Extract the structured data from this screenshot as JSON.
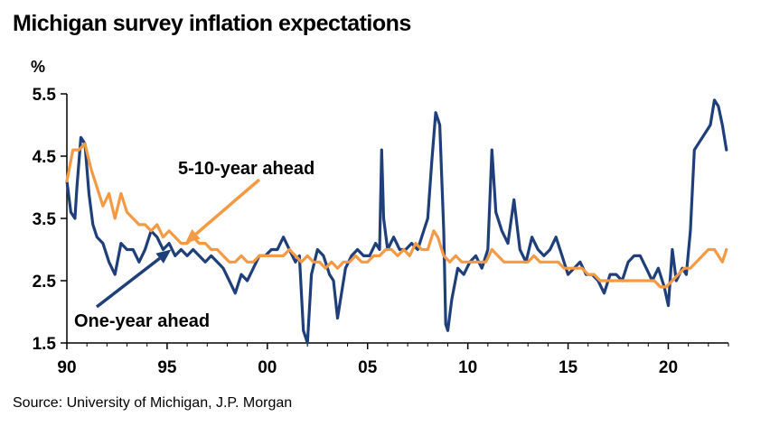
{
  "title": "Michigan survey inflation expectations",
  "source": "Source: University of Michigan, J.P. Morgan",
  "chart_data": {
    "type": "line",
    "ylabel": "%",
    "ylim": [
      1.5,
      5.5
    ],
    "xlim": [
      1990,
      2023
    ],
    "yticks": [
      1.5,
      2.5,
      3.5,
      4.5,
      5.5
    ],
    "ytick_labels": [
      "1.5",
      "2.5",
      "3.5",
      "4.5",
      "5.5"
    ],
    "xticks": [
      1990,
      1995,
      2000,
      2005,
      2010,
      2015,
      2020
    ],
    "xtick_labels": [
      "90",
      "95",
      "00",
      "05",
      "10",
      "15",
      "20"
    ],
    "grid": false,
    "colors": {
      "one_year": "#1F3F7A",
      "five_ten_year": "#F59A44"
    },
    "annotations": [
      {
        "text": "5-10-year ahead",
        "series": "five_ten_year",
        "point": [
          1995.9,
          3.1
        ]
      },
      {
        "text": "One-year ahead",
        "series": "one_year",
        "point": [
          1995.2,
          3.0
        ]
      }
    ],
    "series": [
      {
        "key": "one_year",
        "points": [
          [
            1990.0,
            4.1
          ],
          [
            1990.2,
            3.6
          ],
          [
            1990.4,
            3.5
          ],
          [
            1990.5,
            4.0
          ],
          [
            1990.7,
            4.8
          ],
          [
            1990.9,
            4.7
          ],
          [
            1991.1,
            3.9
          ],
          [
            1991.3,
            3.4
          ],
          [
            1991.5,
            3.2
          ],
          [
            1991.8,
            3.1
          ],
          [
            1992.1,
            2.8
          ],
          [
            1992.4,
            2.6
          ],
          [
            1992.7,
            3.1
          ],
          [
            1993.0,
            3.0
          ],
          [
            1993.3,
            3.0
          ],
          [
            1993.6,
            2.8
          ],
          [
            1993.9,
            3.0
          ],
          [
            1994.2,
            3.3
          ],
          [
            1994.5,
            3.2
          ],
          [
            1994.8,
            3.0
          ],
          [
            1995.1,
            3.1
          ],
          [
            1995.4,
            2.9
          ],
          [
            1995.7,
            3.0
          ],
          [
            1996.0,
            2.9
          ],
          [
            1996.3,
            3.0
          ],
          [
            1996.6,
            2.9
          ],
          [
            1996.9,
            2.8
          ],
          [
            1997.2,
            2.9
          ],
          [
            1997.5,
            2.8
          ],
          [
            1997.8,
            2.7
          ],
          [
            1998.1,
            2.5
          ],
          [
            1998.4,
            2.3
          ],
          [
            1998.7,
            2.6
          ],
          [
            1999.0,
            2.5
          ],
          [
            1999.3,
            2.7
          ],
          [
            1999.6,
            2.9
          ],
          [
            1999.9,
            2.9
          ],
          [
            2000.2,
            3.0
          ],
          [
            2000.5,
            3.0
          ],
          [
            2000.8,
            3.2
          ],
          [
            2001.1,
            3.0
          ],
          [
            2001.4,
            2.8
          ],
          [
            2001.6,
            2.9
          ],
          [
            2001.8,
            1.7
          ],
          [
            2002.0,
            1.5
          ],
          [
            2002.2,
            2.6
          ],
          [
            2002.5,
            3.0
          ],
          [
            2002.8,
            2.9
          ],
          [
            2003.1,
            2.6
          ],
          [
            2003.3,
            2.5
          ],
          [
            2003.5,
            1.9
          ],
          [
            2003.7,
            2.3
          ],
          [
            2003.9,
            2.7
          ],
          [
            2004.2,
            2.9
          ],
          [
            2004.5,
            3.0
          ],
          [
            2004.8,
            2.9
          ],
          [
            2005.1,
            2.9
          ],
          [
            2005.4,
            3.1
          ],
          [
            2005.6,
            3.0
          ],
          [
            2005.7,
            4.6
          ],
          [
            2005.8,
            3.5
          ],
          [
            2006.0,
            3.0
          ],
          [
            2006.3,
            3.2
          ],
          [
            2006.6,
            3.0
          ],
          [
            2006.9,
            3.0
          ],
          [
            2007.2,
            3.1
          ],
          [
            2007.5,
            3.0
          ],
          [
            2007.8,
            3.3
          ],
          [
            2008.0,
            3.5
          ],
          [
            2008.2,
            4.4
          ],
          [
            2008.4,
            5.2
          ],
          [
            2008.6,
            5.0
          ],
          [
            2008.8,
            3.3
          ],
          [
            2008.9,
            1.8
          ],
          [
            2009.0,
            1.7
          ],
          [
            2009.2,
            2.2
          ],
          [
            2009.5,
            2.7
          ],
          [
            2009.8,
            2.6
          ],
          [
            2010.1,
            2.8
          ],
          [
            2010.4,
            2.9
          ],
          [
            2010.7,
            2.7
          ],
          [
            2011.0,
            3.0
          ],
          [
            2011.2,
            4.6
          ],
          [
            2011.4,
            3.6
          ],
          [
            2011.7,
            3.3
          ],
          [
            2012.0,
            3.1
          ],
          [
            2012.3,
            3.8
          ],
          [
            2012.6,
            3.0
          ],
          [
            2012.9,
            2.8
          ],
          [
            2013.2,
            3.2
          ],
          [
            2013.5,
            3.0
          ],
          [
            2013.8,
            2.9
          ],
          [
            2014.1,
            3.0
          ],
          [
            2014.4,
            3.2
          ],
          [
            2014.7,
            2.9
          ],
          [
            2015.0,
            2.6
          ],
          [
            2015.3,
            2.7
          ],
          [
            2015.6,
            2.8
          ],
          [
            2015.9,
            2.6
          ],
          [
            2016.2,
            2.6
          ],
          [
            2016.5,
            2.5
          ],
          [
            2016.8,
            2.3
          ],
          [
            2017.1,
            2.6
          ],
          [
            2017.4,
            2.6
          ],
          [
            2017.7,
            2.5
          ],
          [
            2018.0,
            2.8
          ],
          [
            2018.3,
            2.9
          ],
          [
            2018.6,
            2.9
          ],
          [
            2018.9,
            2.7
          ],
          [
            2019.2,
            2.5
          ],
          [
            2019.5,
            2.7
          ],
          [
            2019.8,
            2.4
          ],
          [
            2020.0,
            2.1
          ],
          [
            2020.2,
            3.0
          ],
          [
            2020.4,
            2.5
          ],
          [
            2020.7,
            2.7
          ],
          [
            2020.9,
            2.6
          ],
          [
            2021.1,
            3.3
          ],
          [
            2021.3,
            4.6
          ],
          [
            2021.5,
            4.7
          ],
          [
            2021.7,
            4.8
          ],
          [
            2021.9,
            4.9
          ],
          [
            2022.1,
            5.0
          ],
          [
            2022.3,
            5.4
          ],
          [
            2022.5,
            5.3
          ],
          [
            2022.7,
            5.0
          ],
          [
            2022.9,
            4.6
          ]
        ]
      },
      {
        "key": "five_ten_year",
        "points": [
          [
            1990.0,
            4.1
          ],
          [
            1990.3,
            4.6
          ],
          [
            1990.6,
            4.6
          ],
          [
            1990.9,
            4.7
          ],
          [
            1991.2,
            4.3
          ],
          [
            1991.5,
            4.0
          ],
          [
            1991.8,
            3.7
          ],
          [
            1992.1,
            3.9
          ],
          [
            1992.4,
            3.5
          ],
          [
            1992.7,
            3.9
          ],
          [
            1993.0,
            3.6
          ],
          [
            1993.3,
            3.5
          ],
          [
            1993.6,
            3.4
          ],
          [
            1993.9,
            3.4
          ],
          [
            1994.2,
            3.3
          ],
          [
            1994.5,
            3.4
          ],
          [
            1994.8,
            3.2
          ],
          [
            1995.1,
            3.3
          ],
          [
            1995.4,
            3.2
          ],
          [
            1995.7,
            3.1
          ],
          [
            1996.0,
            3.1
          ],
          [
            1996.3,
            3.2
          ],
          [
            1996.6,
            3.1
          ],
          [
            1996.9,
            3.1
          ],
          [
            1997.2,
            3.0
          ],
          [
            1997.5,
            3.0
          ],
          [
            1997.8,
            2.9
          ],
          [
            1998.1,
            2.8
          ],
          [
            1998.4,
            2.8
          ],
          [
            1998.7,
            2.9
          ],
          [
            1999.0,
            2.8
          ],
          [
            1999.3,
            2.8
          ],
          [
            1999.6,
            2.9
          ],
          [
            1999.9,
            2.9
          ],
          [
            2000.2,
            2.9
          ],
          [
            2000.5,
            2.9
          ],
          [
            2000.8,
            2.9
          ],
          [
            2001.1,
            3.0
          ],
          [
            2001.4,
            2.9
          ],
          [
            2001.7,
            2.8
          ],
          [
            2002.0,
            2.9
          ],
          [
            2002.3,
            2.8
          ],
          [
            2002.6,
            2.8
          ],
          [
            2002.9,
            2.7
          ],
          [
            2003.2,
            2.8
          ],
          [
            2003.5,
            2.7
          ],
          [
            2003.8,
            2.8
          ],
          [
            2004.1,
            2.8
          ],
          [
            2004.4,
            2.9
          ],
          [
            2004.7,
            2.8
          ],
          [
            2005.0,
            2.8
          ],
          [
            2005.3,
            2.9
          ],
          [
            2005.6,
            2.9
          ],
          [
            2005.9,
            3.0
          ],
          [
            2006.2,
            3.0
          ],
          [
            2006.5,
            2.9
          ],
          [
            2006.8,
            3.0
          ],
          [
            2007.1,
            2.9
          ],
          [
            2007.4,
            3.1
          ],
          [
            2007.7,
            3.0
          ],
          [
            2008.0,
            3.0
          ],
          [
            2008.3,
            3.3
          ],
          [
            2008.5,
            3.2
          ],
          [
            2008.8,
            2.9
          ],
          [
            2009.1,
            2.8
          ],
          [
            2009.4,
            2.9
          ],
          [
            2009.7,
            2.8
          ],
          [
            2010.0,
            2.8
          ],
          [
            2010.3,
            2.8
          ],
          [
            2010.6,
            2.8
          ],
          [
            2010.9,
            2.8
          ],
          [
            2011.2,
            3.0
          ],
          [
            2011.5,
            2.9
          ],
          [
            2011.8,
            2.8
          ],
          [
            2012.1,
            2.8
          ],
          [
            2012.4,
            2.8
          ],
          [
            2012.7,
            2.8
          ],
          [
            2013.0,
            2.8
          ],
          [
            2013.3,
            2.9
          ],
          [
            2013.6,
            2.8
          ],
          [
            2013.9,
            2.8
          ],
          [
            2014.2,
            2.8
          ],
          [
            2014.5,
            2.8
          ],
          [
            2014.8,
            2.7
          ],
          [
            2015.1,
            2.7
          ],
          [
            2015.4,
            2.7
          ],
          [
            2015.7,
            2.7
          ],
          [
            2016.0,
            2.6
          ],
          [
            2016.3,
            2.6
          ],
          [
            2016.6,
            2.5
          ],
          [
            2016.9,
            2.5
          ],
          [
            2017.2,
            2.5
          ],
          [
            2017.5,
            2.5
          ],
          [
            2017.8,
            2.5
          ],
          [
            2018.1,
            2.5
          ],
          [
            2018.4,
            2.5
          ],
          [
            2018.7,
            2.5
          ],
          [
            2019.0,
            2.5
          ],
          [
            2019.3,
            2.5
          ],
          [
            2019.6,
            2.4
          ],
          [
            2019.9,
            2.4
          ],
          [
            2020.2,
            2.5
          ],
          [
            2020.5,
            2.6
          ],
          [
            2020.8,
            2.7
          ],
          [
            2021.1,
            2.7
          ],
          [
            2021.4,
            2.8
          ],
          [
            2021.7,
            2.9
          ],
          [
            2022.0,
            3.0
          ],
          [
            2022.3,
            3.0
          ],
          [
            2022.5,
            2.9
          ],
          [
            2022.7,
            2.8
          ],
          [
            2022.9,
            3.0
          ]
        ]
      }
    ]
  }
}
